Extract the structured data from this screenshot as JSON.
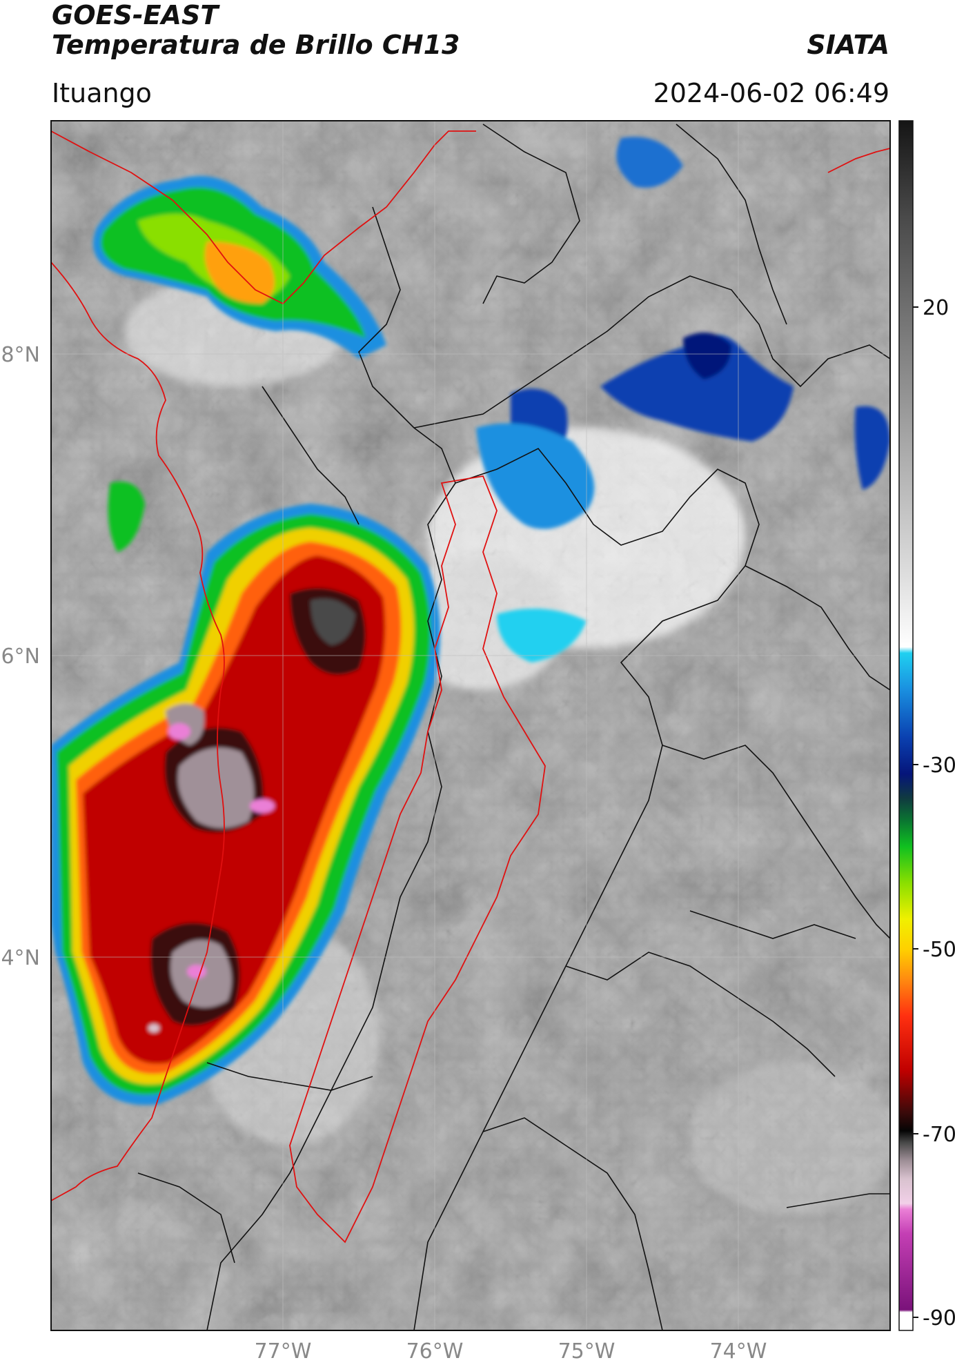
{
  "header": {
    "satellite": "GOES-EAST",
    "product": "Temperatura de Brillo CH13",
    "agency": "SIATA",
    "region": "Ituango",
    "timestamp": "2024-06-02 06:49"
  },
  "map": {
    "lat_labels": [
      "8°N",
      "6°N",
      "4°N"
    ],
    "lon_labels": [
      "77°W",
      "76°W",
      "75°W",
      "74°W"
    ],
    "lat_range": [
      2.5,
      9.4
    ],
    "lon_range": [
      -78.55,
      -72.95
    ],
    "grid": true,
    "colors": {
      "border_primary": "#e01010",
      "border_secondary": "#111111",
      "background_gray": "#8a8a8a"
    }
  },
  "colorbar": {
    "labels": [
      "20",
      "-30",
      "-50",
      "-70",
      "-90"
    ],
    "range": [
      -90,
      50
    ],
    "orientation": "vertical",
    "placement": "right"
  }
}
